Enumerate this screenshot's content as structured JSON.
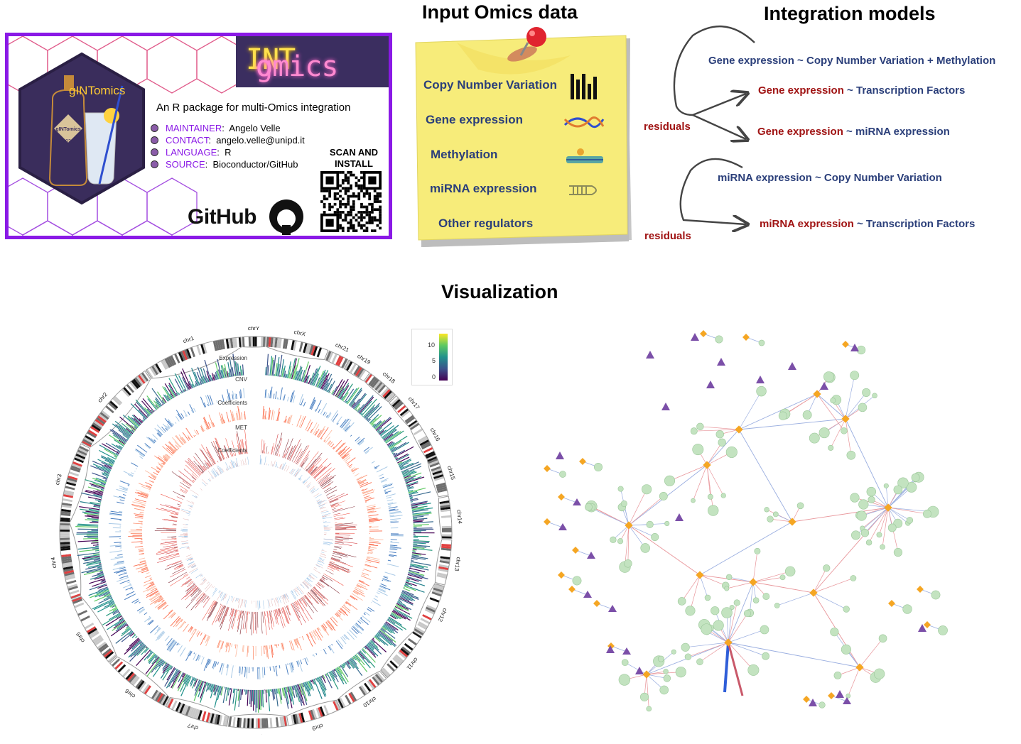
{
  "titles": {
    "input": "Input Omics data",
    "integration": "Integration models",
    "visualization": "Visualization"
  },
  "package_card": {
    "logo_text_prefix": "g",
    "logo_text_highlight": "INT",
    "logo_text_suffix": "omics",
    "hex_logo_text": "gINTomics",
    "hex_logo_year": "2023",
    "description": "An R package for multi-Omics integration",
    "info": [
      {
        "key": "MAINTAINER",
        "value": "Angelo Velle"
      },
      {
        "key": "CONTACT",
        "value": "angelo.velle@unipd.it"
      },
      {
        "key": "LANGUAGE",
        "value": "R"
      },
      {
        "key": "SOURCE",
        "value": "Bioconductor/GitHub"
      }
    ],
    "scan_line1": "SCAN AND",
    "scan_line2": "INSTALL",
    "github_label": "GitHub",
    "border_color": "#8a19e6"
  },
  "input_omics": [
    {
      "label": "Copy Number Variation",
      "icon": "bar-chart-icon"
    },
    {
      "label": "Gene expression",
      "icon": "dna-helix-icon"
    },
    {
      "label": "Methylation",
      "icon": "methylated-dna-icon"
    },
    {
      "label": "miRNA expression",
      "icon": "mirna-hairpin-icon"
    },
    {
      "label": "Other regulators",
      "icon": ""
    }
  ],
  "integration_models": {
    "model1": {
      "dependent": "Gene expression",
      "rest": " ~ Copy Number Variation + Methylation"
    },
    "model2": {
      "dependent": "Gene expression",
      "rest": " ~ Transcription Factors"
    },
    "model3": {
      "dependent": "Gene expression",
      "rest": " ~ miRNA expression"
    },
    "residuals_1": "residuals",
    "model4": {
      "dependent": "miRNA expression",
      "rest": " ~ Copy Number Variation"
    },
    "model5": {
      "dependent": "miRNA expression",
      "rest": " ~ Transcription Factors"
    },
    "residuals_2": "residuals"
  },
  "circos": {
    "chromosomes": [
      "chr1",
      "chr2",
      "chr3",
      "chr4",
      "chr5",
      "chr6",
      "chr7",
      "chr8",
      "chr9",
      "chr10",
      "chr11",
      "chr12",
      "chr13",
      "chr14",
      "chr15",
      "chr16",
      "chr17",
      "chr18",
      "chr19",
      "chr21",
      "chrX",
      "chrY"
    ],
    "track_labels": [
      "Expression",
      "CNV",
      "Coefficients",
      "MET",
      "Coefficients"
    ],
    "colorbar_ticks": [
      "10",
      "5",
      "0"
    ]
  },
  "colors": {
    "title_blue": "#2b3f7a",
    "residual_red": "#a01414",
    "sticky_yellow": "#f7ec7a",
    "node_green": "#c3e3c0",
    "node_orange": "#f5a623",
    "node_purple": "#7b4fa8",
    "edge_red": "#e8959a",
    "edge_blue": "#9aaee0"
  }
}
